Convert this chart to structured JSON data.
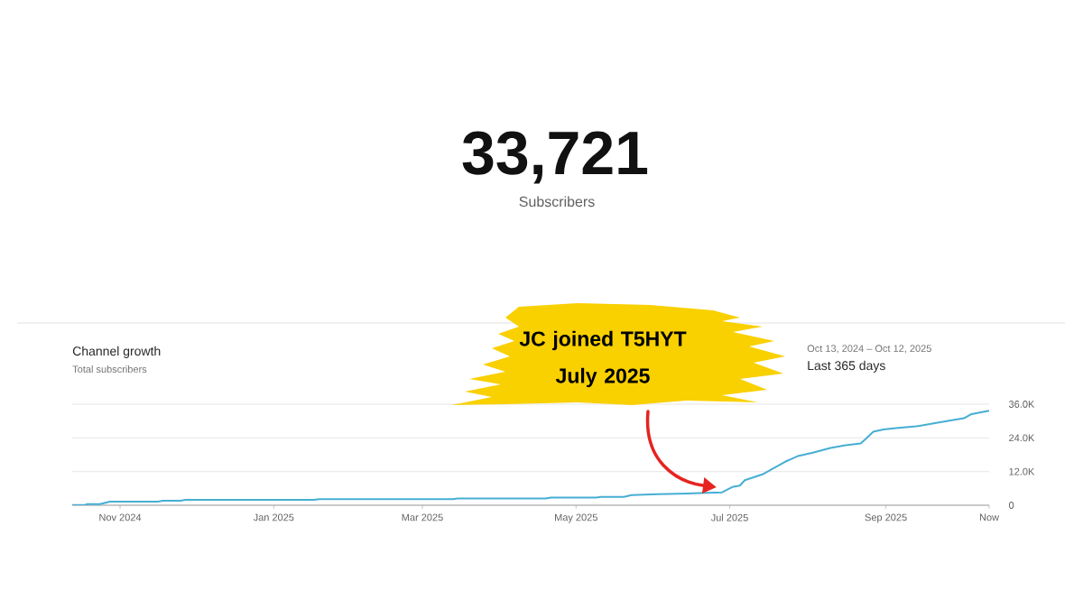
{
  "chart_data": {
    "type": "line",
    "title": "Channel growth",
    "subtitle": "Total subscribers",
    "x": [
      "2024-10-13",
      "2024-10-18",
      "2024-10-19",
      "2024-10-24",
      "2024-10-28",
      "2024-11-16",
      "2024-11-18",
      "2024-11-25",
      "2024-11-27",
      "2025-01-17",
      "2025-01-19",
      "2025-03-13",
      "2025-03-15",
      "2025-04-19",
      "2025-04-21",
      "2025-05-09",
      "2025-05-11",
      "2025-05-20",
      "2025-05-23",
      "2025-06-02",
      "2025-06-19",
      "2025-06-28",
      "2025-07-02",
      "2025-07-05",
      "2025-07-07",
      "2025-07-14",
      "2025-07-23",
      "2025-07-28",
      "2025-08-03",
      "2025-08-10",
      "2025-08-16",
      "2025-08-22",
      "2025-08-24",
      "2025-08-27",
      "2025-08-31",
      "2025-09-05",
      "2025-09-13",
      "2025-09-22",
      "2025-10-02",
      "2025-10-05",
      "2025-10-12"
    ],
    "values": [
      100,
      100,
      400,
      400,
      1300,
      1300,
      1600,
      1600,
      1900,
      1900,
      2200,
      2200,
      2400,
      2400,
      2700,
      2700,
      3000,
      3000,
      3600,
      3900,
      4300,
      4600,
      6500,
      7000,
      8900,
      11000,
      15500,
      17500,
      18700,
      20400,
      21400,
      22000,
      23600,
      26200,
      27000,
      27500,
      28100,
      29500,
      31000,
      32500,
      33700
    ],
    "color": "#46aed3",
    "xlim": [
      "2024-10-13",
      "2025-10-12"
    ],
    "xticks": [
      {
        "value": "2024-11-01",
        "label": "Nov 2024"
      },
      {
        "value": "2025-01-01",
        "label": "Jan 2025"
      },
      {
        "value": "2025-03-01",
        "label": "Mar 2025"
      },
      {
        "value": "2025-05-01",
        "label": "May 2025"
      },
      {
        "value": "2025-07-01",
        "label": "Jul 2025"
      },
      {
        "value": "2025-09-01",
        "label": "Sep 2025"
      },
      {
        "value": "2025-10-12",
        "label": "Now"
      }
    ],
    "ylim": [
      0,
      36000
    ],
    "yticks": [
      0,
      {
        "value": 12000,
        "label": "12.0K"
      },
      {
        "value": 24000,
        "label": "24.0K"
      },
      {
        "value": 36000,
        "label": "36.0K"
      }
    ],
    "grid": "y",
    "annotations": [
      "33,721",
      "Subscribers",
      "Oct 13, 2024 – Oct 12, 2025",
      "Last 365 days",
      "JC joined T5HYT July 2025"
    ]
  }
}
